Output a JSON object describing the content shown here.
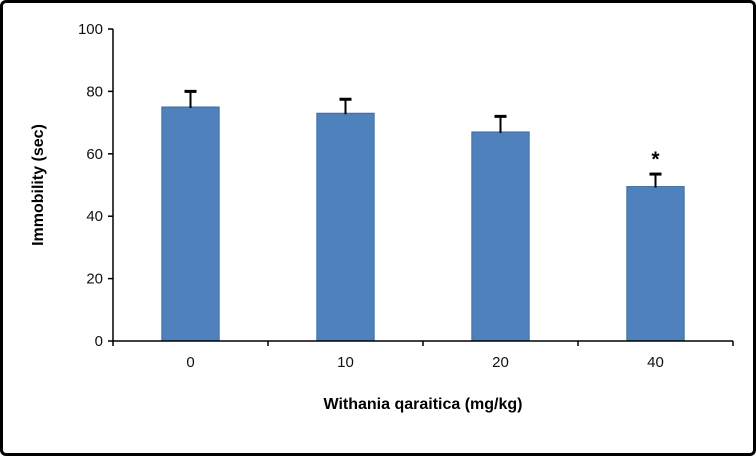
{
  "chart_data": {
    "type": "bar",
    "title": "",
    "categories": [
      "0",
      "10",
      "20",
      "40"
    ],
    "values": [
      75,
      73,
      67,
      49.5
    ],
    "errors": [
      5,
      4.5,
      5,
      4
    ],
    "annotations": [
      {
        "category_index": 3,
        "text": "*"
      }
    ],
    "xlabel": "Withania qaraitica (mg/kg)",
    "ylabel": "Immobility (sec)",
    "ylim": [
      0,
      100
    ],
    "yticks": [
      0,
      20,
      40,
      60,
      80,
      100
    ],
    "bar_color": "#4F81BD",
    "bar_edge_color": "#3A6EA5",
    "axis_color": "#000000",
    "error_bar_color": "#000000",
    "grid": false,
    "legend": "none"
  }
}
